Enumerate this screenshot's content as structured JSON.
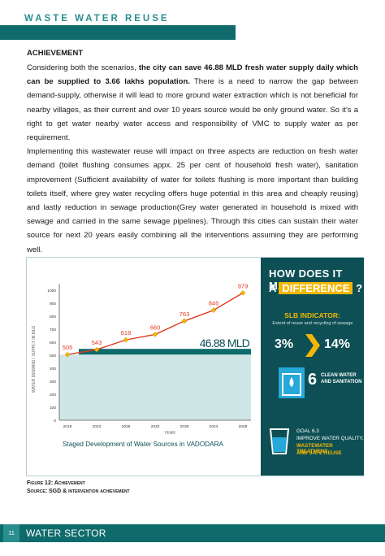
{
  "header": {
    "title": "WASTE WATER REUSE"
  },
  "content": {
    "heading": "ACHIEVEMENT",
    "paragraph1_part1": "Considering both the scenarios, ",
    "paragraph1_bold": "the city can save 46.88 MLD fresh water supply daily which can be supplied to 3.66 lakhs population.",
    "paragraph1_part2": " There is a need to narrow the gap between demand-supply, otherwise it will lead to more ground water extraction which is not beneficial for nearby villages, as their current and over 10 years source would be only ground water. So it’s a right to get water nearby water access and responsibility of VMC to supply water as per requirement.",
    "paragraph2": "Implementing this wastewater reuse will impact on three aspects are reduction on fresh water demand (toilet flushing consumes appx. 25 per cent of household fresh water), sanitation improvement (Sufficient availability of water for toilets flushing is more important than building toilets itself, where grey water recycling offers huge potential in this area and cheaply reusing) and lastly reduction in sewage production(Grey water generated in household is mixed with sewage and carried in the same sewage pipelines). Through this cities can sustain their water source for next 20 years easily combining all the interventions assuming they are performing well."
  },
  "chart_data": {
    "type": "line",
    "categories": [
      "2018",
      "2023",
      "2028",
      "2033",
      "2038",
      "2043",
      "2048"
    ],
    "series": [
      {
        "values": [
          505,
          543,
          618,
          660,
          763,
          846,
          979
        ]
      }
    ],
    "baseline_value": 505,
    "saving_label": "46.88 MLD",
    "title": "Staged Development of Water Sources in VADODARA",
    "xlabel": "YEAR",
    "ylabel": "WATER DEMAND / SUPPLY IN MLD",
    "ylim": [
      0,
      1000
    ],
    "yticks": [
      0,
      100,
      200,
      300,
      400,
      500,
      600,
      700,
      800,
      900,
      1000
    ],
    "grid": false,
    "line_color": "#e03a1f",
    "marker_color": "#f2b705",
    "fill_color": "#cfe6e6",
    "band_color": "#0f6b6b"
  },
  "panel": {
    "how_line": "HOW DOES IT MAKE",
    "a_word": "A",
    "difference_word": "DIFFERENCE",
    "question_mark": "?",
    "slb_label": "SLB INDICATOR:",
    "slb_desc": "Extent of reuse and recycling of sewage",
    "pct_from": "3%",
    "pct_to": "14%",
    "sdg_number": "6",
    "sdg_text_line1": "CLEAN WATER",
    "sdg_text_line2": "AND SANITATION",
    "goal_title": "GOAL 6.3",
    "goal_line1": "IMPROVE WATER QUALITY,",
    "goal_line2": "WASTEWATER TREATMENT",
    "goal_line3": "AND SAFE REUSE"
  },
  "caption": {
    "figure": "Figure 12: Achievement",
    "source": "Source: SGD & intervention achievement"
  },
  "footer": {
    "page_number": "11",
    "section_title": "WATER SECTOR"
  }
}
